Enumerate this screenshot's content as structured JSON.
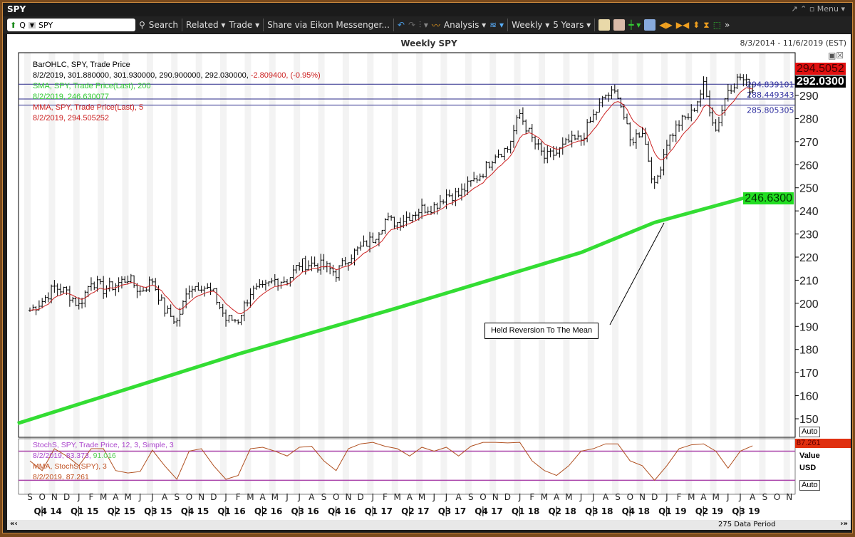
{
  "window": {
    "title": "SPY",
    "controls": [
      "↗",
      "⌃",
      "▫",
      "Menu ▾"
    ]
  },
  "toolbar": {
    "ric": "SPY",
    "q": "Q",
    "search": "Search",
    "related": "Related ▾",
    "trade": "Trade ▾",
    "share": "Share via Eikon Messenger...",
    "analysis": "Analysis ▾",
    "interval": "Weekly ▾",
    "period": "5 Years ▾"
  },
  "chart_header": {
    "title": "Weekly SPY",
    "range": "8/3/2014 - 11/6/2019 (EST)"
  },
  "legend": {
    "l1": "BarOHLC, SPY, Trade Price",
    "l2a": "8/2/2019, 301.880000, 301.930000, 290.900000, 292.030000, ",
    "l2b": "-2.809400, (-0.95%)",
    "l3": "SMA, SPY, Trade Price(Last),  200",
    "l4": "8/2/2019, 246.630077",
    "l5": "MMA, SPY, Trade Price(Last),  5",
    "l6": "8/2/2019, 294.505252"
  },
  "stoch_legend": {
    "l1": "StochS, SPY, Trade Price,  12, 3, Simple, 3",
    "l2a": "8/2/2019, 83.373, ",
    "l2b": "91.016",
    "l3": "MMA, StochS(SPY),  3",
    "l4": "8/2/2019, 87.261"
  },
  "tags": {
    "mma": "294.5052",
    "last": "292.0300",
    "sma": "246.6300",
    "stoch": "87.261",
    "auto1": "Auto",
    "auto2": "Auto",
    "value": "Value",
    "usd": "USD"
  },
  "hlines": [
    "294.839101",
    "288.449343",
    "285.805305"
  ],
  "annotation": "Held Reversion To The Mean",
  "footer": {
    "periods": "275 Data Period"
  },
  "colors": {
    "sma": "#33dd33",
    "mma": "#cc2222",
    "stoch": "#b05020",
    "hline": "#2a2a8a",
    "band": "#aa44aa"
  },
  "chart_data": {
    "type": "ohlc",
    "y_ticks": [
      150,
      160,
      170,
      180,
      190,
      200,
      210,
      220,
      230,
      240,
      250,
      260,
      270,
      280,
      290
    ],
    "ylim": [
      143,
      305
    ],
    "months": [
      "S",
      "O",
      "N",
      "D",
      "J",
      "F",
      "M",
      "A",
      "M",
      "J",
      "J",
      "A",
      "S",
      "O",
      "N",
      "D",
      "J",
      "F",
      "M",
      "A",
      "M",
      "J",
      "J",
      "A",
      "S",
      "O",
      "N",
      "D",
      "J",
      "F",
      "M",
      "A",
      "M",
      "J",
      "J",
      "A",
      "S",
      "O",
      "N",
      "D",
      "J",
      "F",
      "M",
      "A",
      "M",
      "J",
      "J",
      "A",
      "S",
      "O",
      "N",
      "D",
      "J",
      "F",
      "M",
      "A",
      "M",
      "J",
      "J",
      "A",
      "S",
      "O",
      "N"
    ],
    "quarters": [
      "Q4 14",
      "Q1 15",
      "Q2 15",
      "Q3 15",
      "Q4 15",
      "Q1 16",
      "Q2 16",
      "Q3 16",
      "Q4 16",
      "Q1 17",
      "Q2 17",
      "Q3 17",
      "Q4 17",
      "Q1 18",
      "Q2 18",
      "Q3 18",
      "Q4 18",
      "Q1 19",
      "Q2 19",
      "Q3 19"
    ],
    "monthly_close_from_2014_09": [
      197,
      201,
      207,
      205,
      199,
      210,
      206,
      208,
      211,
      205,
      210,
      197,
      192,
      207,
      208,
      204,
      193,
      193,
      205,
      206,
      210,
      210,
      217,
      217,
      216,
      213,
      220,
      224,
      228,
      236,
      235,
      238,
      241,
      242,
      247,
      247,
      252,
      257,
      265,
      267,
      282,
      271,
      263,
      265,
      270,
      271,
      281,
      290,
      291,
      270,
      275,
      250,
      270,
      278,
      282,
      294,
      275,
      293,
      298,
      292
    ],
    "sma200": [
      [
        "2014-08",
        148
      ],
      [
        "2016-02",
        178
      ],
      [
        "2017-03",
        198
      ],
      [
        "2018-06",
        222
      ],
      [
        "2018-12",
        235
      ],
      [
        "2019-08",
        246.6
      ]
    ],
    "stoch_monthly": [
      60,
      40,
      85,
      70,
      50,
      85,
      85,
      40,
      35,
      38,
      82,
      50,
      22,
      80,
      85,
      50,
      22,
      30,
      85,
      88,
      80,
      70,
      88,
      90,
      60,
      40,
      85,
      95,
      98,
      90,
      85,
      70,
      88,
      80,
      88,
      70,
      90,
      98,
      98,
      97,
      98,
      60,
      40,
      30,
      50,
      80,
      85,
      95,
      95,
      60,
      50,
      20,
      50,
      85,
      93,
      95,
      80,
      45,
      80,
      91
    ],
    "stoch_bands": [
      80,
      20
    ]
  }
}
